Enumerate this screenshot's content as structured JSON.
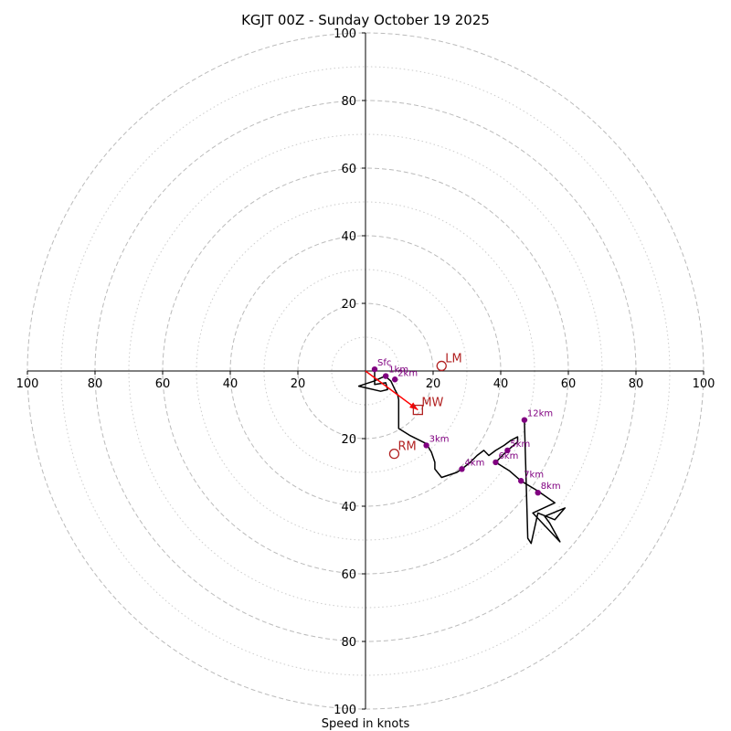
{
  "chart_data": {
    "type": "hodograph",
    "title": "KGJT 00Z - Sunday October 19 2025",
    "xlabel": "Speed in knots",
    "units": "knots",
    "axis_range": [
      -100,
      100
    ],
    "ring_major": [
      20,
      40,
      60,
      80,
      100
    ],
    "ring_minor": [
      10,
      30,
      50,
      70,
      90
    ],
    "x_ticks": [
      {
        "value": -100,
        "label": "100"
      },
      {
        "value": -80,
        "label": "80"
      },
      {
        "value": -60,
        "label": "60"
      },
      {
        "value": -40,
        "label": "40"
      },
      {
        "value": -20,
        "label": "20"
      },
      {
        "value": 20,
        "label": "20"
      },
      {
        "value": 40,
        "label": "40"
      },
      {
        "value": 60,
        "label": "60"
      },
      {
        "value": 80,
        "label": "80"
      },
      {
        "value": 100,
        "label": "100"
      }
    ],
    "y_ticks": [
      {
        "value": 100,
        "label": "100"
      },
      {
        "value": 80,
        "label": "80"
      },
      {
        "value": 60,
        "label": "60"
      },
      {
        "value": 40,
        "label": "40"
      },
      {
        "value": 20,
        "label": "20"
      },
      {
        "value": -20,
        "label": "20"
      },
      {
        "value": -40,
        "label": "40"
      },
      {
        "value": -60,
        "label": "60"
      },
      {
        "value": -80,
        "label": "80"
      },
      {
        "value": -100,
        "label": "100"
      }
    ],
    "trace": [
      [
        2.7,
        0.5
      ],
      [
        2.7,
        -4.0
      ],
      [
        6.0,
        -3.5
      ],
      [
        6.5,
        -5.5
      ],
      [
        4.5,
        -6.0
      ],
      [
        -2.0,
        -4.5
      ],
      [
        2.5,
        -3.0
      ],
      [
        5.8,
        -1.5
      ],
      [
        7.5,
        -3.0
      ],
      [
        8.7,
        -5.5
      ],
      [
        9.5,
        -7.0
      ],
      [
        9.8,
        -8.5
      ],
      [
        9.8,
        -17.0
      ],
      [
        13.0,
        -19.0
      ],
      [
        18.0,
        -21.5
      ],
      [
        19.5,
        -24.0
      ],
      [
        20.5,
        -27.0
      ],
      [
        20.5,
        -29.0
      ],
      [
        22.5,
        -31.5
      ],
      [
        27.0,
        -30.0
      ],
      [
        28.5,
        -29.0
      ],
      [
        31.0,
        -27.0
      ],
      [
        33.0,
        -25.0
      ],
      [
        35.0,
        -23.5
      ],
      [
        36.5,
        -25.0
      ],
      [
        38.5,
        -23.5
      ],
      [
        41.0,
        -22.0
      ],
      [
        43.0,
        -20.5
      ],
      [
        45.0,
        -19.5
      ],
      [
        45.0,
        -21.0
      ],
      [
        42.0,
        -23.5
      ],
      [
        38.5,
        -27.0
      ],
      [
        42.5,
        -29.5
      ],
      [
        46.0,
        -32.5
      ],
      [
        51.0,
        -35.5
      ],
      [
        56.0,
        -39.0
      ],
      [
        49.5,
        -42.0
      ],
      [
        57.5,
        -50.5
      ],
      [
        54.5,
        -45.0
      ],
      [
        53.0,
        -43.0
      ],
      [
        59.0,
        -40.5
      ],
      [
        56.0,
        -44.0
      ],
      [
        51.0,
        -42.0
      ],
      [
        49.0,
        -51.0
      ],
      [
        48.0,
        -49.5
      ],
      [
        47.0,
        -14.5
      ]
    ],
    "height_markers": [
      {
        "label": "Sfc",
        "u": 2.7,
        "v": 0.5
      },
      {
        "label": "1km",
        "u": 6.0,
        "v": -1.5
      },
      {
        "label": "2km",
        "u": 8.7,
        "v": -2.5
      },
      {
        "label": "3km",
        "u": 18.0,
        "v": -22.0
      },
      {
        "label": "4km",
        "u": 28.5,
        "v": -29.0
      },
      {
        "label": "5km",
        "u": 42.0,
        "v": -23.5
      },
      {
        "label": "6km",
        "u": 38.5,
        "v": -27.0
      },
      {
        "label": "7km",
        "u": 46.0,
        "v": -32.5
      },
      {
        "label": "8km",
        "u": 51.0,
        "v": -36.0
      },
      {
        "label": "12km",
        "u": 47.0,
        "v": -14.5
      }
    ],
    "storm_motion_vector": {
      "from": [
        0,
        0
      ],
      "to": [
        15.5,
        -11.5
      ]
    },
    "storm_markers": [
      {
        "label": "LM",
        "shape": "circle",
        "u": 22.5,
        "v": 1.5
      },
      {
        "label": "MW",
        "shape": "square",
        "u": 15.5,
        "v": -11.5
      },
      {
        "label": "RM",
        "shape": "circle",
        "u": 8.5,
        "v": -24.5
      }
    ],
    "colors": {
      "trace": "#000000",
      "height_marker": "#800080",
      "storm": "#b22222",
      "storm_vector": "#ff0000",
      "ring_major": "#bbbbbb",
      "ring_minor": "#cccccc",
      "axes": "#000000"
    }
  }
}
